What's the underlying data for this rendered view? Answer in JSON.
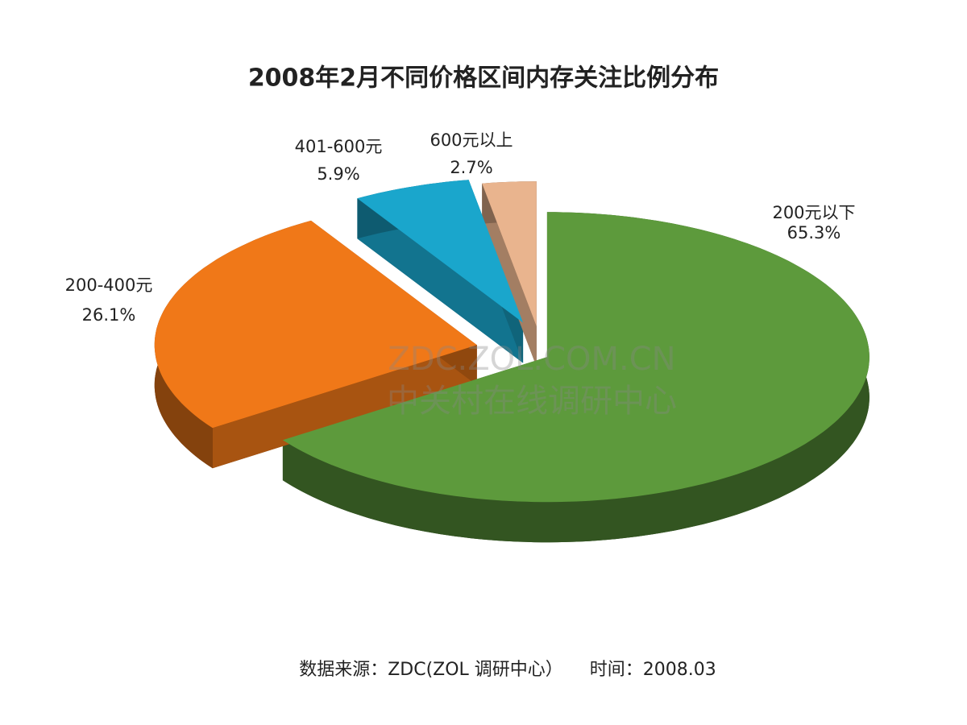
{
  "chart_data": {
    "type": "pie",
    "title": "2008年2月不同价格区间内存关注比例分布",
    "categories": [
      "200元以下",
      "200-400元",
      "401-600元",
      "600元以上"
    ],
    "values": [
      65.3,
      26.1,
      5.9,
      2.7
    ],
    "value_labels": [
      "65.3%",
      "26.1%",
      "5.9%",
      "2.7%"
    ],
    "colors": [
      "#5d9a3c",
      "#f07818",
      "#1aa6cc",
      "#e9b48e"
    ],
    "watermark": [
      "ZDC.ZOL.COM.CN",
      "中关村在线调研中心"
    ],
    "source": "数据来源：ZDC(ZOL 调研中心）　　时间：2008.03"
  }
}
